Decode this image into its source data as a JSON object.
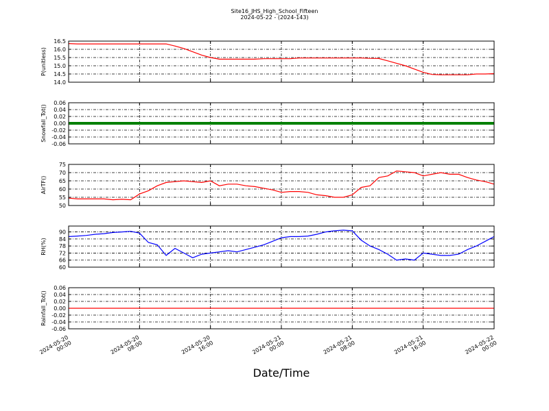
{
  "chart_data": [
    {
      "type": "line",
      "title": "Site16_JHS_High_School_Fifteen",
      "subtitle": "2024-05-22 - (2024-143)",
      "ylabel": "P(unitless)",
      "xlim": [
        "2024-05-20 00:00",
        "2024-05-22 00:00"
      ],
      "xticks": [
        "2024-05-20 00:00",
        "2024-05-20 08:00",
        "2024-05-20 16:00",
        "2024-05-21 00:00",
        "2024-05-21 08:00",
        "2024-05-21 16:00",
        "2024-05-22 00:00"
      ],
      "ylim": [
        14.0,
        16.5
      ],
      "yticks": [
        {
          "value": 14.0,
          "label": "14.0"
        },
        14.5,
        {
          "value": 15.0,
          "label": "15.0"
        },
        15.5,
        {
          "value": 16.0,
          "label": "16.0"
        },
        16.5
      ],
      "grid": true,
      "series": [
        {
          "color": "#ff0000",
          "values": [
            16.35,
            16.33,
            16.33,
            16.33,
            16.33,
            16.33,
            16.33,
            16.33,
            16.33,
            16.33,
            16.33,
            16.33,
            16.2,
            16.05,
            15.85,
            15.65,
            15.5,
            15.4,
            15.4,
            15.4,
            15.4,
            15.4,
            15.43,
            15.43,
            15.43,
            15.43,
            15.47,
            15.47,
            15.47,
            15.47,
            15.47,
            15.47,
            15.47,
            15.47,
            15.45,
            15.44,
            15.3,
            15.15,
            15.0,
            14.8,
            14.6,
            14.47,
            14.45,
            14.45,
            14.45,
            14.45,
            14.5,
            14.5,
            14.52
          ]
        }
      ]
    },
    {
      "type": "line",
      "ylabel": "Snowfall_Tot()",
      "xlim": [
        "2024-05-20 00:00",
        "2024-05-22 00:00"
      ],
      "xticks": [
        "2024-05-20 00:00",
        "2024-05-20 08:00",
        "2024-05-20 16:00",
        "2024-05-21 00:00",
        "2024-05-21 08:00",
        "2024-05-21 16:00",
        "2024-05-22 00:00"
      ],
      "ylim": [
        -0.06,
        0.06
      ],
      "yticks": [
        -0.06,
        -0.04,
        -0.02,
        {
          "value": 0,
          "label": "0.00"
        },
        0.02,
        0.04,
        0.06
      ],
      "grid": true,
      "series": [
        {
          "color": "#008000",
          "values": [
            0,
            0,
            0,
            0,
            0,
            0,
            0,
            0,
            0,
            0,
            0,
            0,
            0,
            0,
            0,
            0,
            0,
            0,
            0,
            0,
            0,
            0,
            0,
            0,
            0,
            0,
            0,
            0,
            0,
            0,
            0,
            0,
            0,
            0,
            0,
            0,
            0,
            0,
            0,
            0,
            0,
            0,
            0,
            0,
            0,
            0,
            0,
            0,
            0
          ]
        }
      ]
    },
    {
      "type": "line",
      "ylabel": "AirTF()",
      "xlim": [
        "2024-05-20 00:00",
        "2024-05-22 00:00"
      ],
      "xticks": [
        "2024-05-20 00:00",
        "2024-05-20 08:00",
        "2024-05-20 16:00",
        "2024-05-21 00:00",
        "2024-05-21 08:00",
        "2024-05-21 16:00",
        "2024-05-22 00:00"
      ],
      "ylim": [
        50,
        75
      ],
      "yticks": [
        50,
        55,
        60,
        65,
        70,
        75
      ],
      "grid": true,
      "series": [
        {
          "color": "#ff0000",
          "values": [
            54.5,
            54,
            54,
            54,
            54,
            53.5,
            53.8,
            53.5,
            57,
            59,
            62,
            64,
            64.5,
            65,
            64.5,
            64,
            65,
            62,
            63,
            63,
            62,
            61.5,
            60.5,
            59.5,
            58,
            58.5,
            58.5,
            58,
            56.5,
            56,
            55,
            55,
            56.5,
            61,
            62,
            67,
            68,
            71,
            70.5,
            70,
            68,
            69,
            70,
            69,
            69,
            67,
            65.5,
            64.5,
            63
          ]
        }
      ]
    },
    {
      "type": "line",
      "ylabel": "RH(%)",
      "xlim": [
        "2024-05-20 00:00",
        "2024-05-22 00:00"
      ],
      "xticks": [
        "2024-05-20 00:00",
        "2024-05-20 08:00",
        "2024-05-20 16:00",
        "2024-05-21 00:00",
        "2024-05-21 08:00",
        "2024-05-21 16:00",
        "2024-05-22 00:00"
      ],
      "ylim": [
        60,
        95
      ],
      "yticks": [
        60,
        66,
        72,
        78,
        84,
        90
      ],
      "grid": true,
      "series": [
        {
          "color": "#0000ff",
          "values": [
            86,
            86.5,
            87,
            88,
            88.5,
            89.5,
            90,
            90.5,
            89,
            81,
            79,
            70,
            76,
            72,
            68,
            71,
            72,
            73,
            74,
            73,
            75,
            77,
            79,
            82,
            85,
            86,
            86,
            86.5,
            88,
            90,
            91,
            91.5,
            91,
            83,
            78,
            75,
            71,
            66,
            67,
            66,
            72,
            71,
            70,
            70,
            71,
            75,
            78,
            82,
            86
          ]
        }
      ]
    },
    {
      "type": "line",
      "ylabel": "Rainfall_Tot()",
      "xlabel": "Date/Time",
      "xlim": [
        "2024-05-20 00:00",
        "2024-05-22 00:00"
      ],
      "xticks": [
        "2024-05-20 00:00",
        "2024-05-20 08:00",
        "2024-05-20 16:00",
        "2024-05-21 00:00",
        "2024-05-21 08:00",
        "2024-05-21 16:00",
        "2024-05-22 00:00"
      ],
      "ylim": [
        -0.06,
        0.06
      ],
      "yticks": [
        -0.06,
        -0.04,
        -0.02,
        {
          "value": 0,
          "label": "0.00"
        },
        0.02,
        0.04,
        0.06
      ],
      "grid": true,
      "show_xtick_labels": true,
      "series": [
        {
          "color": "#ff0000",
          "values": [
            0,
            0,
            0,
            0,
            0,
            0,
            0,
            0,
            0,
            0,
            0,
            0,
            0,
            0,
            0,
            0,
            0,
            0,
            0,
            0,
            0,
            0,
            0,
            0,
            0,
            0,
            0,
            0,
            0,
            0,
            0,
            0,
            0,
            0,
            0,
            0,
            0,
            0,
            0,
            0,
            0,
            0,
            0,
            0,
            0,
            0,
            0,
            0,
            0
          ]
        }
      ]
    }
  ]
}
